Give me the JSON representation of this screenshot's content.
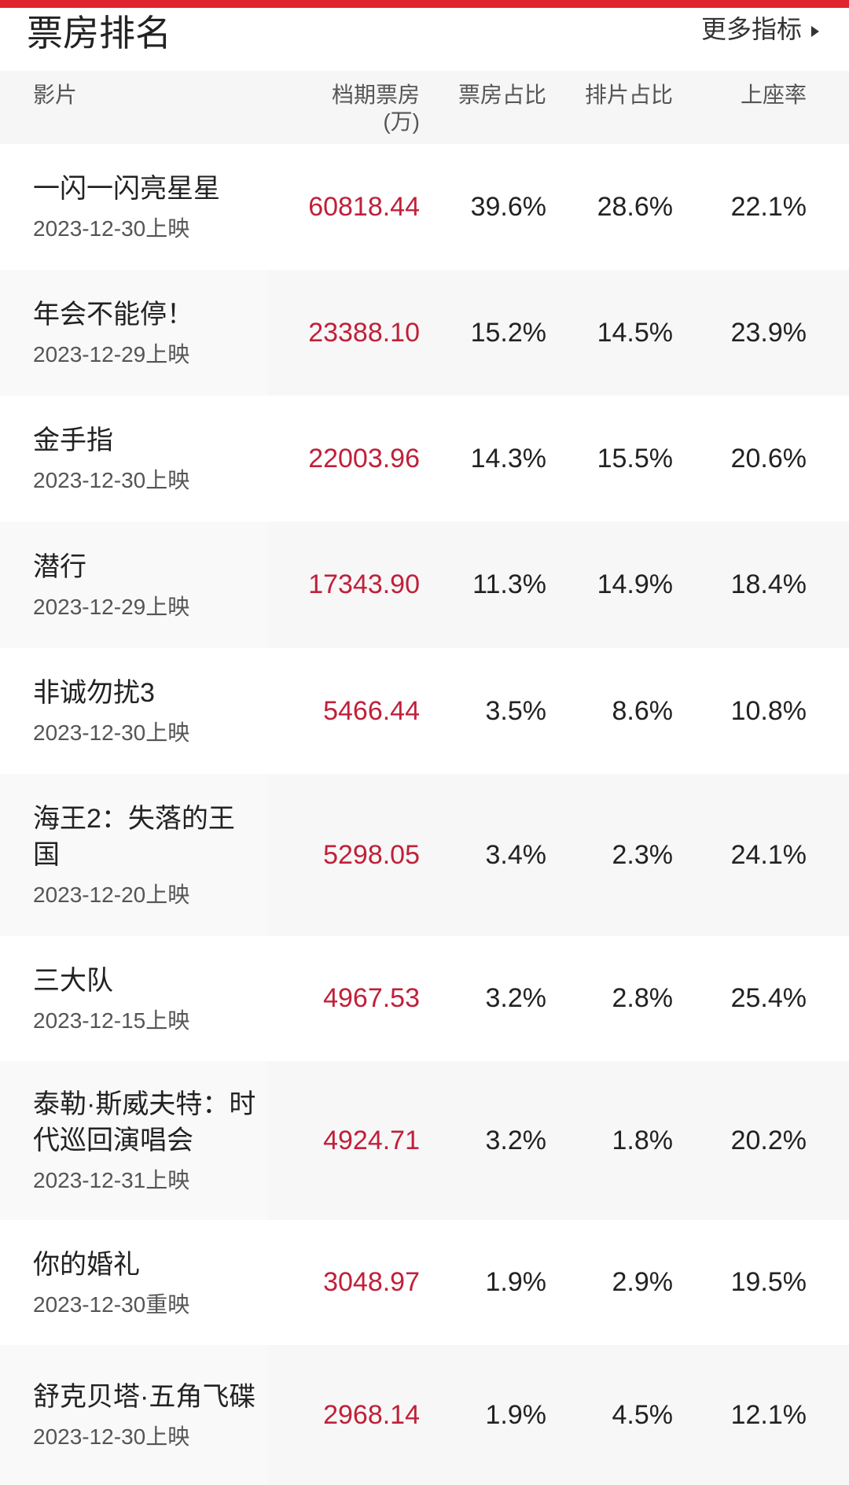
{
  "header": {
    "title": "票房排名",
    "more": "更多指标"
  },
  "table": {
    "columns": [
      "影片",
      "档期票房",
      "票房占比",
      "排片占比",
      "上座率"
    ],
    "box_office_unit": "(万)",
    "rows": [
      {
        "name": "一闪一闪亮星星",
        "date": "2023-12-30上映",
        "box_office": "60818.44",
        "box_share": "39.6%",
        "screening_share": "28.6%",
        "seat_rate": "22.1%"
      },
      {
        "name": "年会不能停！",
        "date": "2023-12-29上映",
        "box_office": "23388.10",
        "box_share": "15.2%",
        "screening_share": "14.5%",
        "seat_rate": "23.9%"
      },
      {
        "name": "金手指",
        "date": "2023-12-30上映",
        "box_office": "22003.96",
        "box_share": "14.3%",
        "screening_share": "15.5%",
        "seat_rate": "20.6%"
      },
      {
        "name": "潜行",
        "date": "2023-12-29上映",
        "box_office": "17343.90",
        "box_share": "11.3%",
        "screening_share": "14.9%",
        "seat_rate": "18.4%"
      },
      {
        "name": "非诚勿扰3",
        "date": "2023-12-30上映",
        "box_office": "5466.44",
        "box_share": "3.5%",
        "screening_share": "8.6%",
        "seat_rate": "10.8%"
      },
      {
        "name": "海王2：失落的王国",
        "date": "2023-12-20上映",
        "box_office": "5298.05",
        "box_share": "3.4%",
        "screening_share": "2.3%",
        "seat_rate": "24.1%"
      },
      {
        "name": "三大队",
        "date": "2023-12-15上映",
        "box_office": "4967.53",
        "box_share": "3.2%",
        "screening_share": "2.8%",
        "seat_rate": "25.4%"
      },
      {
        "name": "泰勒·斯威夫特：时代巡回演唱会",
        "date": "2023-12-31上映",
        "box_office": "4924.71",
        "box_share": "3.2%",
        "screening_share": "1.8%",
        "seat_rate": "20.2%"
      },
      {
        "name": "你的婚礼",
        "date": "2023-12-30重映",
        "box_office": "3048.97",
        "box_share": "1.9%",
        "screening_share": "2.9%",
        "seat_rate": "19.5%"
      },
      {
        "name": "舒克贝塔·五角飞碟",
        "date": "2023-12-30上映",
        "box_office": "2968.14",
        "box_share": "1.9%",
        "screening_share": "4.5%",
        "seat_rate": "12.1%"
      }
    ]
  }
}
